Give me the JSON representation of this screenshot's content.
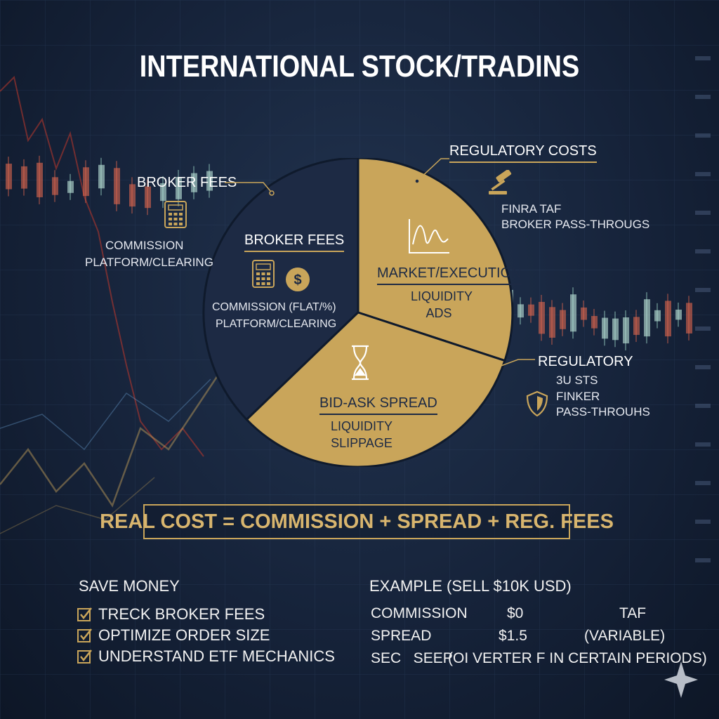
{
  "title": "INTERNATIONAL STOCK/TRADINS",
  "colors": {
    "navy": "#1d2a44",
    "gold": "#c9a55a",
    "bg": "#16233a"
  },
  "left_callout": {
    "heading": "BROKER FEES",
    "icon": "calculator-icon",
    "lines": [
      "COMMISSION",
      "PLATFORM/CLEARING"
    ]
  },
  "pie": {
    "broker": {
      "heading": "BROKER FEES",
      "lines": [
        "COMMISSION (FLAT/%)",
        "PLATFORM/CLEARING"
      ],
      "icons": [
        "calculator-icon",
        "dollar-coin-icon"
      ]
    },
    "market": {
      "heading": "MARKET/EXECUTION",
      "lines": [
        "LIQUIDITY",
        "ADS"
      ],
      "icon": "line-chart-icon"
    },
    "spread": {
      "heading": "BID-ASK SPREAD",
      "lines": [
        "LIQUIDITY",
        "SLIPPAGE"
      ],
      "icon": "hourglass-icon"
    }
  },
  "right_top_callout": {
    "heading": "REGULATORY COSTS",
    "icon": "gavel-icon",
    "lines": [
      "FINRA TAF",
      "BROKER PASS-THROUGS"
    ]
  },
  "right_bottom_callout": {
    "heading": "REGULATORY",
    "icon": "shield-icon",
    "lines": [
      "3U STS",
      "FINKER",
      "PASS-THROUHS"
    ]
  },
  "formula": "REAL COST = COMMISSION + SPREAD + REG. FEES",
  "save_money": {
    "heading": "SAVE MONEY",
    "items": [
      "TRECK BROKER FEES",
      "OPTIMIZE ORDER SIZE",
      "UNDERSTAND ETF MECHANICS"
    ]
  },
  "example": {
    "heading": "EXAMPLE (SELL $10K USD)",
    "rows": [
      {
        "label": "COMMISSION",
        "value": "$0",
        "note": "TAF"
      },
      {
        "label": "SPREAD",
        "value": "$1.5",
        "note": "(VARIABLE)"
      },
      {
        "label": "SEC   SEEP",
        "value": "(OI VERTER F IN CERTAIN PERIODS)",
        "note": ""
      }
    ]
  }
}
